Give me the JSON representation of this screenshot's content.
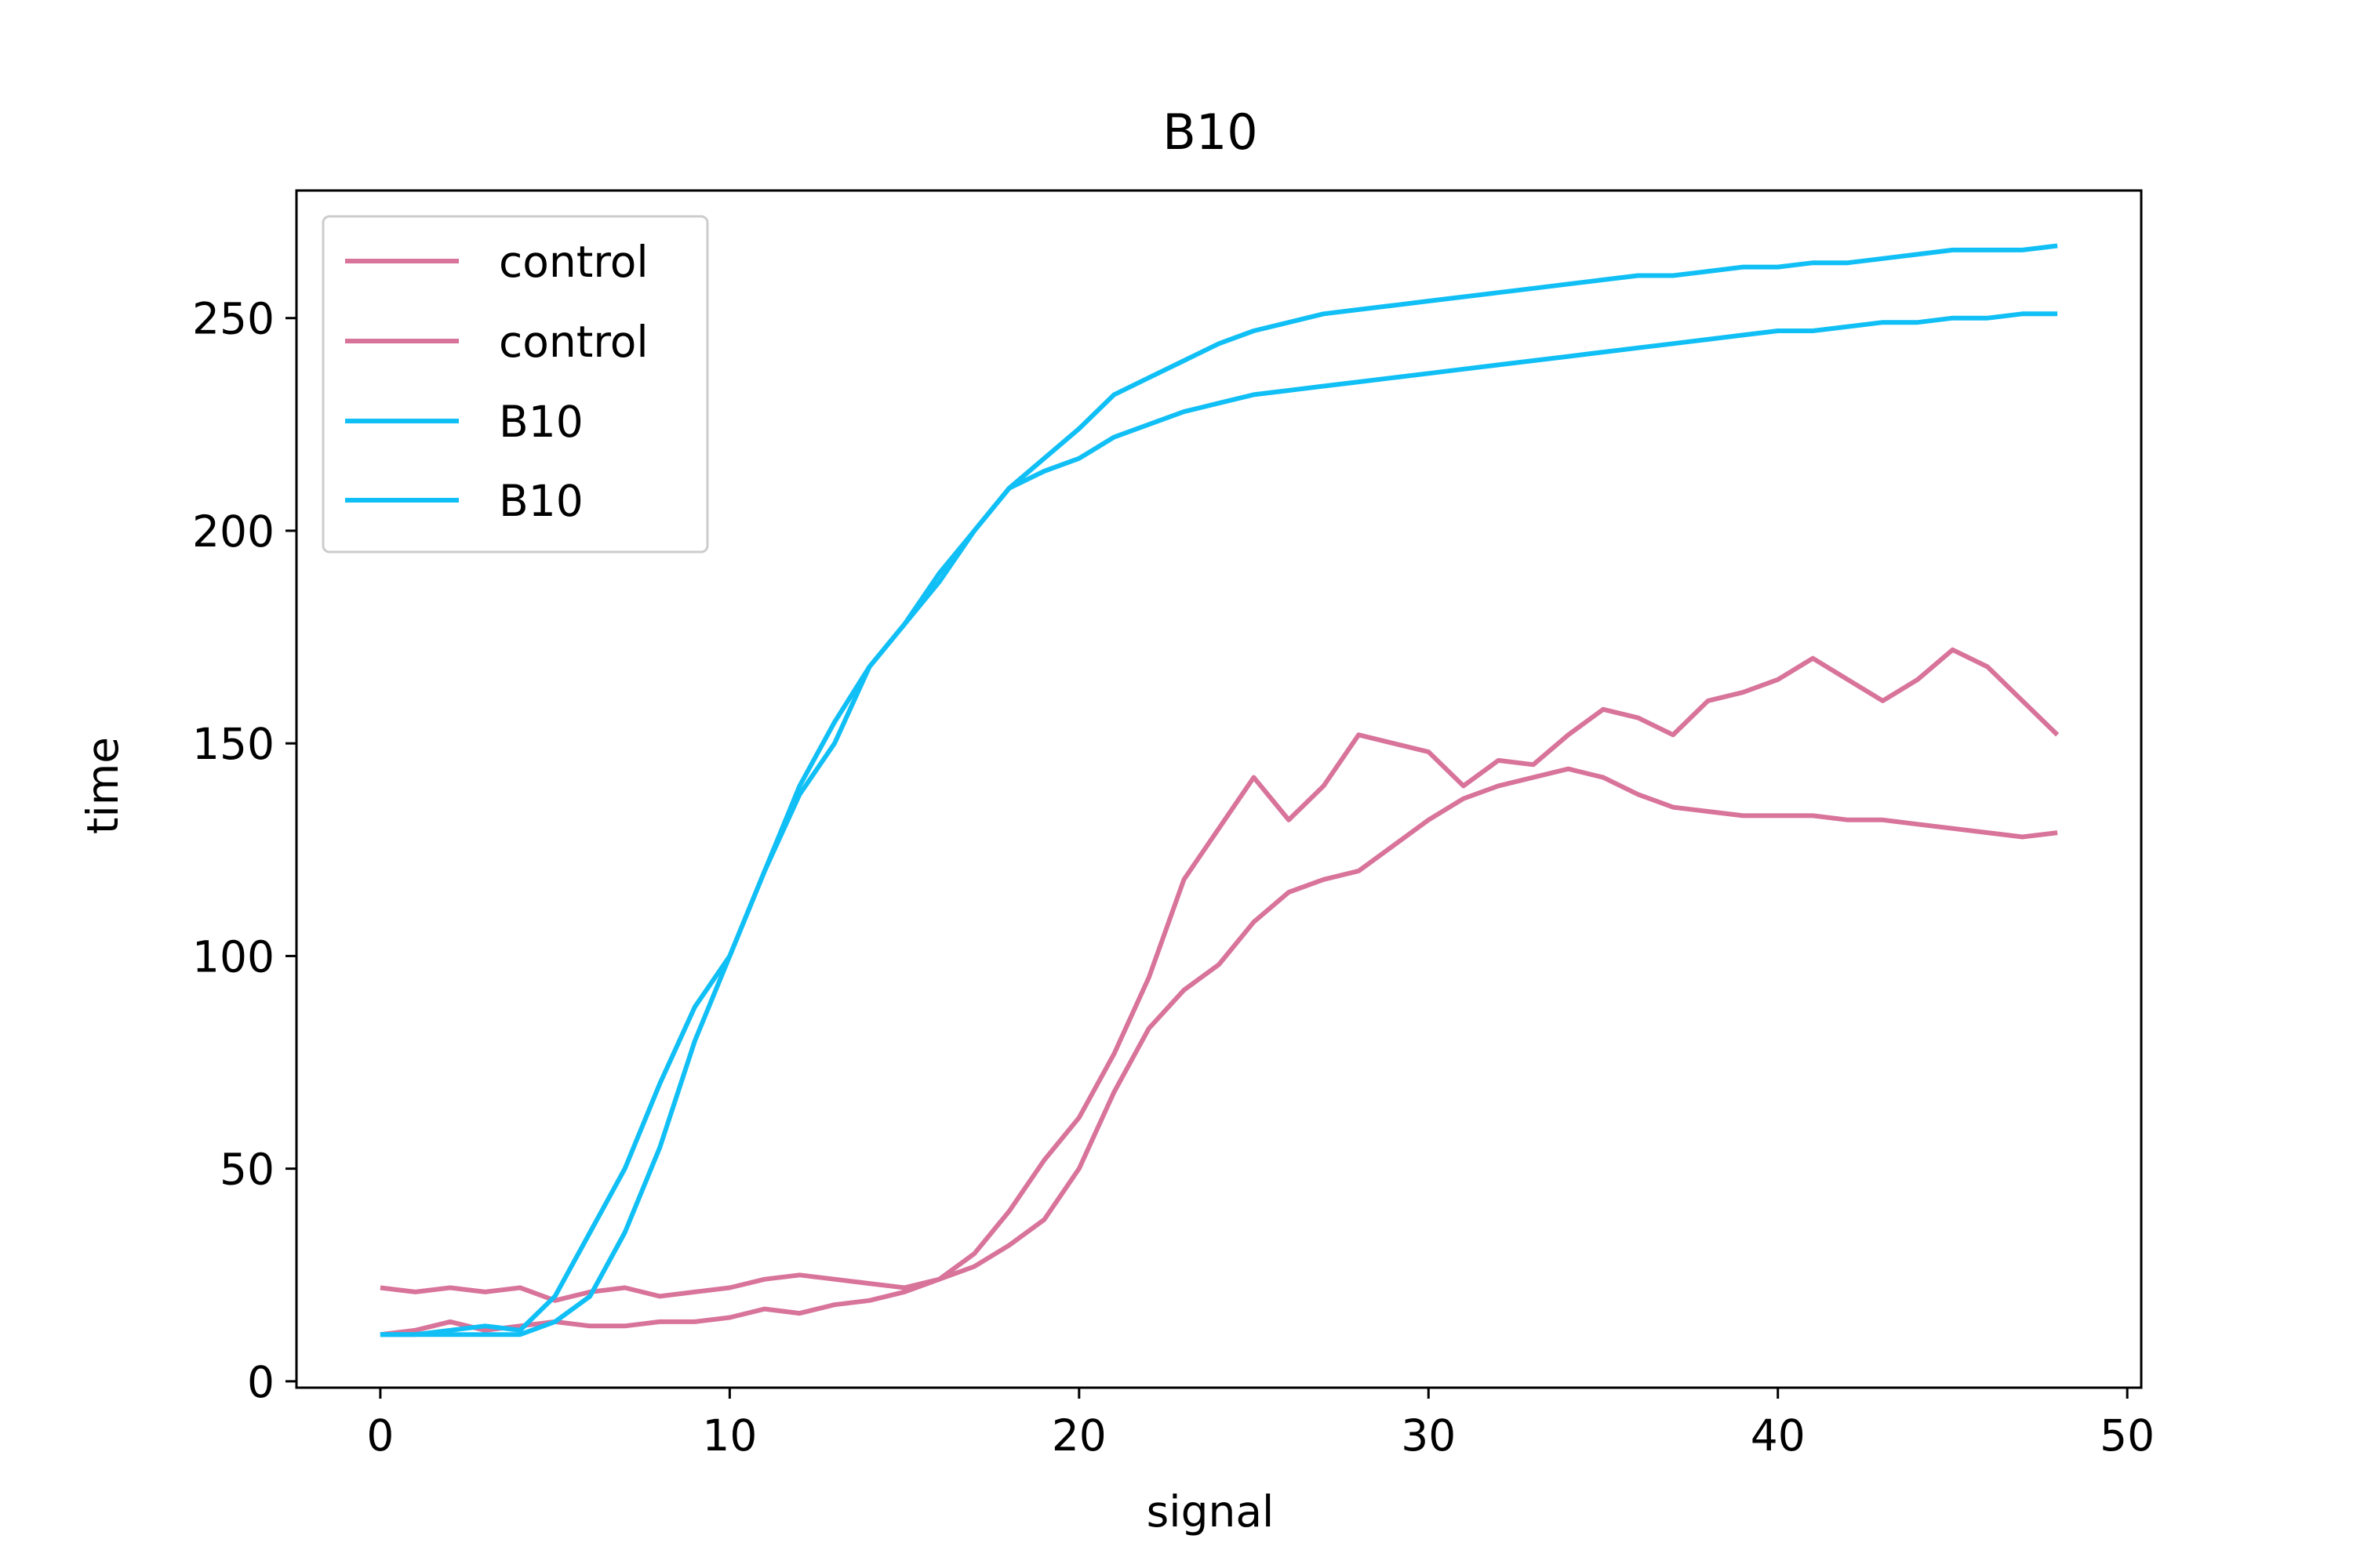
{
  "chart_data": {
    "type": "line",
    "title": "B10",
    "xlabel": "signal",
    "ylabel": "time",
    "xlim": [
      -2.4,
      50.4
    ],
    "ylim": [
      -1.5,
      280
    ],
    "x_ticks": [
      0,
      10,
      20,
      30,
      40,
      50
    ],
    "y_ticks": [
      0,
      50,
      100,
      150,
      200,
      250
    ],
    "x_tick_labels": [
      "0",
      "10",
      "20",
      "30",
      "40",
      "50"
    ],
    "y_tick_labels": [
      "0",
      "50",
      "100",
      "150",
      "200",
      "250"
    ],
    "grid": false,
    "legend_position": "top-left",
    "series": [
      {
        "name": "control",
        "color": "#d8739a",
        "x": [
          0,
          1,
          2,
          3,
          4,
          5,
          6,
          7,
          8,
          9,
          10,
          11,
          12,
          13,
          14,
          15,
          16,
          17,
          18,
          19,
          20,
          21,
          22,
          23,
          24,
          25,
          26,
          27,
          28,
          29,
          30,
          31,
          32,
          33,
          34,
          35,
          36,
          37,
          38,
          39,
          40,
          41,
          42,
          43,
          44,
          45,
          46,
          47,
          48
        ],
        "y": [
          22,
          21,
          22,
          21,
          22,
          19,
          21,
          22,
          20,
          21,
          22,
          24,
          25,
          24,
          23,
          22,
          24,
          30,
          40,
          52,
          62,
          77,
          95,
          118,
          130,
          142,
          132,
          140,
          152,
          150,
          148,
          140,
          146,
          145,
          152,
          158,
          156,
          152,
          160,
          162,
          165,
          170,
          165,
          160,
          165,
          172,
          168,
          160,
          152
        ]
      },
      {
        "name": "control",
        "color": "#d8739a",
        "x": [
          0,
          1,
          2,
          3,
          4,
          5,
          6,
          7,
          8,
          9,
          10,
          11,
          12,
          13,
          14,
          15,
          16,
          17,
          18,
          19,
          20,
          21,
          22,
          23,
          24,
          25,
          26,
          27,
          28,
          29,
          30,
          31,
          32,
          33,
          34,
          35,
          36,
          37,
          38,
          39,
          40,
          41,
          42,
          43,
          44,
          45,
          46,
          47,
          48
        ],
        "y": [
          11,
          12,
          14,
          12,
          13,
          14,
          13,
          13,
          14,
          14,
          15,
          17,
          16,
          18,
          19,
          21,
          24,
          27,
          32,
          38,
          50,
          68,
          83,
          92,
          98,
          108,
          115,
          118,
          120,
          126,
          132,
          137,
          140,
          142,
          144,
          142,
          138,
          135,
          134,
          133,
          133,
          133,
          132,
          132,
          131,
          130,
          129,
          128,
          129
        ]
      },
      {
        "name": "B10",
        "color": "#10bff5",
        "x": [
          0,
          1,
          2,
          3,
          4,
          5,
          6,
          7,
          8,
          9,
          10,
          11,
          12,
          13,
          14,
          15,
          16,
          17,
          18,
          19,
          20,
          21,
          22,
          23,
          24,
          25,
          26,
          27,
          28,
          29,
          30,
          31,
          32,
          33,
          34,
          35,
          36,
          37,
          38,
          39,
          40,
          41,
          42,
          43,
          44,
          45,
          46,
          47,
          48
        ],
        "y": [
          11,
          11,
          12,
          13,
          12,
          20,
          35,
          50,
          70,
          88,
          100,
          120,
          138,
          150,
          168,
          178,
          188,
          200,
          210,
          217,
          224,
          232,
          236,
          240,
          244,
          247,
          249,
          251,
          252,
          253,
          254,
          255,
          256,
          257,
          258,
          259,
          260,
          260,
          261,
          262,
          262,
          263,
          263,
          264,
          265,
          266,
          266,
          266,
          267
        ]
      },
      {
        "name": "B10",
        "color": "#10bff5",
        "x": [
          0,
          1,
          2,
          3,
          4,
          5,
          6,
          7,
          8,
          9,
          10,
          11,
          12,
          13,
          14,
          15,
          16,
          17,
          18,
          19,
          20,
          21,
          22,
          23,
          24,
          25,
          26,
          27,
          28,
          29,
          30,
          31,
          32,
          33,
          34,
          35,
          36,
          37,
          38,
          39,
          40,
          41,
          42,
          43,
          44,
          45,
          46,
          47,
          48
        ],
        "y": [
          11,
          11,
          11,
          11,
          11,
          14,
          20,
          35,
          55,
          80,
          100,
          120,
          140,
          155,
          168,
          178,
          190,
          200,
          210,
          214,
          217,
          222,
          225,
          228,
          230,
          232,
          233,
          234,
          235,
          236,
          237,
          238,
          239,
          240,
          241,
          242,
          243,
          244,
          245,
          246,
          247,
          247,
          248,
          249,
          249,
          250,
          250,
          251,
          251
        ]
      }
    ]
  }
}
